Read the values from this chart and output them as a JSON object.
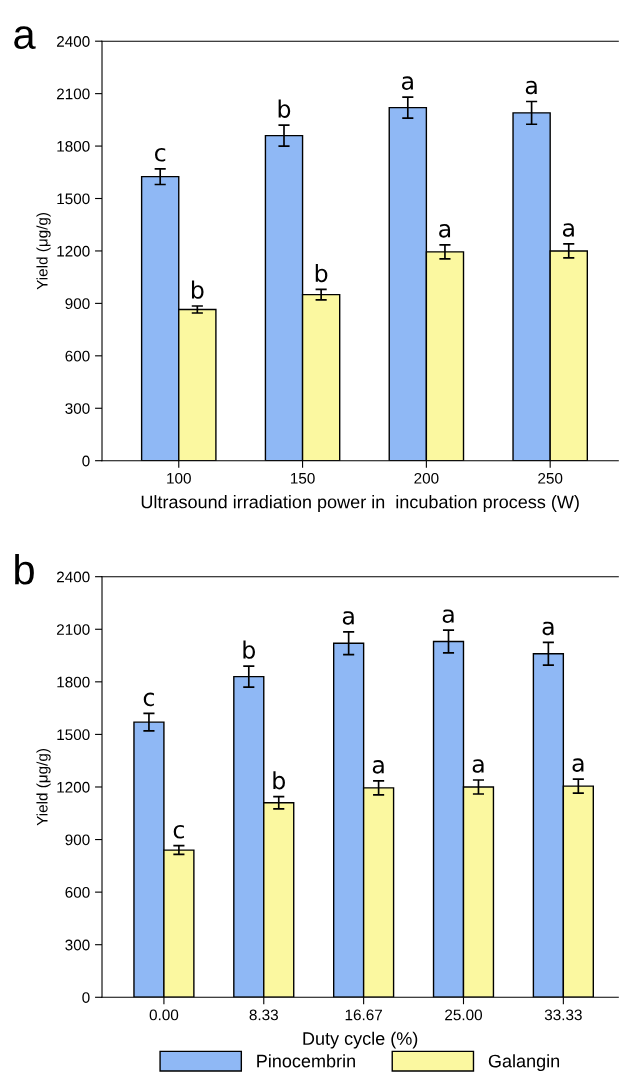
{
  "chart_data": [
    {
      "type": "bar",
      "title": "a",
      "xlabel": "Ultrasound irradiation power in  incubation process (W)",
      "ylabel": "Yield (μg/g)",
      "categories": [
        "100",
        "150",
        "200",
        "250"
      ],
      "ylim": [
        0,
        2400
      ],
      "yticks": [
        0,
        300,
        600,
        900,
        1200,
        1500,
        1800,
        2100,
        2400
      ],
      "series": [
        {
          "color": "#8fb8f5",
          "values": [
            1625,
            1860,
            2020,
            1990
          ],
          "errors": [
            45,
            60,
            60,
            65
          ],
          "value_labels": [
            "c",
            "b",
            "a",
            "a"
          ]
        },
        {
          "color": "#fbf8a0",
          "values": [
            865,
            950,
            1195,
            1200
          ],
          "errors": [
            20,
            30,
            40,
            40
          ],
          "value_labels": [
            "b",
            "b",
            "a",
            "a"
          ]
        }
      ]
    },
    {
      "type": "bar",
      "title": "b",
      "xlabel": "Duty cycle (%)",
      "ylabel": "Yield (μg/g)",
      "categories": [
        "0.00",
        "8.33",
        "16.67",
        "25.00",
        "33.33"
      ],
      "ylim": [
        0,
        2400
      ],
      "yticks": [
        0,
        300,
        600,
        900,
        1200,
        1500,
        1800,
        2100,
        2400
      ],
      "legend": "bottom",
      "series": [
        {
          "name": "Pinocembrin",
          "color": "#8fb8f5",
          "values": [
            1570,
            1830,
            2020,
            2030,
            1960
          ],
          "errors": [
            50,
            60,
            65,
            65,
            65
          ],
          "value_labels": [
            "c",
            "b",
            "a",
            "a",
            "a"
          ]
        },
        {
          "name": "Galangin",
          "color": "#fbf8a0",
          "values": [
            840,
            1110,
            1195,
            1200,
            1205
          ],
          "errors": [
            25,
            35,
            40,
            40,
            40
          ],
          "value_labels": [
            "c",
            "b",
            "a",
            "a",
            "a"
          ]
        }
      ]
    }
  ]
}
